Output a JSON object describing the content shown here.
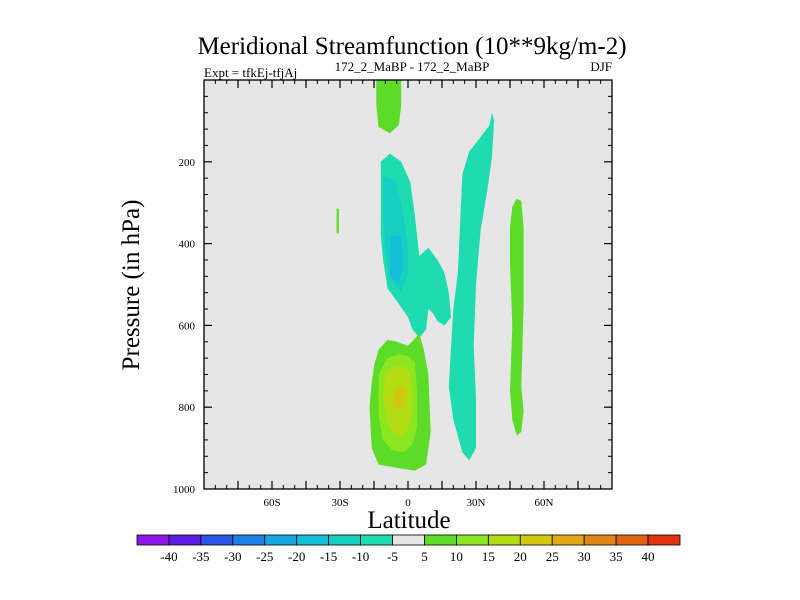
{
  "chart_data": {
    "type": "contour",
    "title": "Meridional Streamfunction (10**9kg/m-2)",
    "subtitle_left": "Expt = tfkEj-tfjAj",
    "subtitle_center": "172_2_MaBP - 172_2_MaBP",
    "subtitle_right": "DJF",
    "xlabel": "Latitude",
    "ylabel": "Pressure (in hPa)",
    "xlim": [
      -90,
      90
    ],
    "ylim": [
      1000,
      0
    ],
    "x_ticks": [
      {
        "value": -60,
        "label": "60S"
      },
      {
        "value": -30,
        "label": "30S"
      },
      {
        "value": 0,
        "label": "0"
      },
      {
        "value": 30,
        "label": "30N"
      },
      {
        "value": 60,
        "label": "60N"
      }
    ],
    "y_ticks": [
      {
        "value": 200,
        "label": "200"
      },
      {
        "value": 400,
        "label": "400"
      },
      {
        "value": 600,
        "label": "600"
      },
      {
        "value": 800,
        "label": "800"
      },
      {
        "value": 1000,
        "label": "1000"
      }
    ],
    "background_color": "#e6e6e6",
    "colorbar": {
      "labels": [
        "-40",
        "-35",
        "-30",
        "-25",
        "-20",
        "-15",
        "-10",
        "-5",
        "5",
        "10",
        "15",
        "20",
        "25",
        "30",
        "35",
        "40"
      ],
      "colors": [
        "#8b1ae6",
        "#5a1ee0",
        "#2a55e6",
        "#1e80e6",
        "#15a6e0",
        "#14bfd8",
        "#17cfc0",
        "#1fdcb0",
        "#e6e6e6",
        "#5cdc28",
        "#8ce620",
        "#b4dc14",
        "#d4c80f",
        "#e0a812",
        "#e08614",
        "#e06414",
        "#e03412"
      ]
    },
    "regions": [
      {
        "name": "green-cell-upper",
        "level": 5,
        "color": "#5cdc28",
        "points": [
          [
            -14,
            0
          ],
          [
            -3,
            0
          ],
          [
            -3,
            60
          ],
          [
            -4,
            110
          ],
          [
            -8,
            130
          ],
          [
            -13,
            115
          ],
          [
            -14,
            60
          ]
        ]
      },
      {
        "name": "green-cell-south-tropic",
        "level": 5,
        "color": "#5cdc28",
        "points": [
          [
            -31.5,
            315
          ],
          [
            -30.5,
            315
          ],
          [
            -30.5,
            375
          ],
          [
            -31.5,
            375
          ]
        ]
      },
      {
        "name": "cyan-band-tropics",
        "level": -5,
        "color": "#1fdcb0",
        "points": [
          [
            -12,
            200
          ],
          [
            -8,
            180
          ],
          [
            -3,
            200
          ],
          [
            1,
            250
          ],
          [
            3,
            330
          ],
          [
            5,
            430
          ],
          [
            9,
            410
          ],
          [
            13,
            440
          ],
          [
            16,
            470
          ],
          [
            18,
            520
          ],
          [
            19,
            580
          ],
          [
            16,
            600
          ],
          [
            13,
            590
          ],
          [
            11,
            570
          ],
          [
            9,
            560
          ],
          [
            8,
            610
          ],
          [
            5,
            630
          ],
          [
            2,
            610
          ],
          [
            0,
            580
          ],
          [
            -5,
            540
          ],
          [
            -9,
            510
          ],
          [
            -11,
            440
          ],
          [
            -12,
            380
          ],
          [
            -12,
            280
          ]
        ]
      },
      {
        "name": "cyan-core-tropics",
        "level": -10,
        "color": "#17cfc0",
        "points": [
          [
            -11,
            230
          ],
          [
            -5,
            250
          ],
          [
            -2,
            330
          ],
          [
            0,
            400
          ],
          [
            0,
            470
          ],
          [
            -3,
            520
          ],
          [
            -8,
            490
          ],
          [
            -10,
            420
          ],
          [
            -11,
            330
          ]
        ]
      },
      {
        "name": "blue-core-tropics",
        "level": -15,
        "color": "#14bfd8",
        "points": [
          [
            -8,
            380
          ],
          [
            -3,
            380
          ],
          [
            -2,
            450
          ],
          [
            -4,
            500
          ],
          [
            -8,
            480
          ]
        ]
      },
      {
        "name": "cyan-band-north",
        "level": -5,
        "color": "#1fdcb0",
        "points": [
          [
            24,
            230
          ],
          [
            27,
            175
          ],
          [
            32,
            140
          ],
          [
            36,
            110
          ],
          [
            37,
            80
          ],
          [
            38,
            100
          ],
          [
            37,
            190
          ],
          [
            35,
            270
          ],
          [
            32,
            370
          ],
          [
            30,
            500
          ],
          [
            29,
            650
          ],
          [
            30,
            780
          ],
          [
            30,
            900
          ],
          [
            27,
            930
          ],
          [
            24,
            910
          ],
          [
            20,
            830
          ],
          [
            18,
            750
          ],
          [
            19,
            650
          ],
          [
            20,
            560
          ],
          [
            22,
            470
          ],
          [
            23,
            350
          ]
        ]
      },
      {
        "name": "green-cell-lower",
        "level": 5,
        "color": "#5cdc28",
        "points": [
          [
            -15,
            700
          ],
          [
            -13,
            660
          ],
          [
            -9,
            635
          ],
          [
            -5,
            640
          ],
          [
            0,
            650
          ],
          [
            5,
            620
          ],
          [
            7,
            660
          ],
          [
            9,
            720
          ],
          [
            10,
            860
          ],
          [
            8,
            940
          ],
          [
            3,
            955
          ],
          [
            -3,
            950
          ],
          [
            -8,
            945
          ],
          [
            -13,
            940
          ],
          [
            -16,
            900
          ],
          [
            -17,
            800
          ],
          [
            -16,
            740
          ]
        ]
      },
      {
        "name": "light-green-lower",
        "level": 10,
        "color": "#8ce620",
        "points": [
          [
            -13,
            720
          ],
          [
            -9,
            680
          ],
          [
            -4,
            670
          ],
          [
            0,
            675
          ],
          [
            3,
            690
          ],
          [
            4,
            760
          ],
          [
            4,
            850
          ],
          [
            2,
            890
          ],
          [
            -2,
            910
          ],
          [
            -7,
            905
          ],
          [
            -11,
            880
          ],
          [
            -13,
            820
          ]
        ]
      },
      {
        "name": "yellow-green-lower",
        "level": 15,
        "color": "#b4dc14",
        "points": [
          [
            -10,
            720
          ],
          [
            -6,
            700
          ],
          [
            -2,
            700
          ],
          [
            1,
            720
          ],
          [
            2,
            780
          ],
          [
            1,
            840
          ],
          [
            -2,
            870
          ],
          [
            -6,
            870
          ],
          [
            -9,
            840
          ],
          [
            -11,
            780
          ]
        ]
      },
      {
        "name": "gold-lower",
        "level": 20,
        "color": "#d4c80f",
        "points": [
          [
            -6,
            760
          ],
          [
            -3,
            745
          ],
          [
            -1,
            760
          ],
          [
            -2,
            795
          ],
          [
            -5,
            805
          ],
          [
            -7,
            790
          ]
        ]
      },
      {
        "name": "green-cell-north",
        "level": 5,
        "color": "#5cdc28",
        "points": [
          [
            45,
            360
          ],
          [
            46,
            310
          ],
          [
            48,
            290
          ],
          [
            50,
            295
          ],
          [
            51,
            360
          ],
          [
            51,
            550
          ],
          [
            50,
            750
          ],
          [
            51,
            810
          ],
          [
            50,
            860
          ],
          [
            48,
            870
          ],
          [
            46,
            830
          ],
          [
            45,
            760
          ],
          [
            46,
            600
          ],
          [
            45,
            450
          ]
        ]
      }
    ]
  }
}
